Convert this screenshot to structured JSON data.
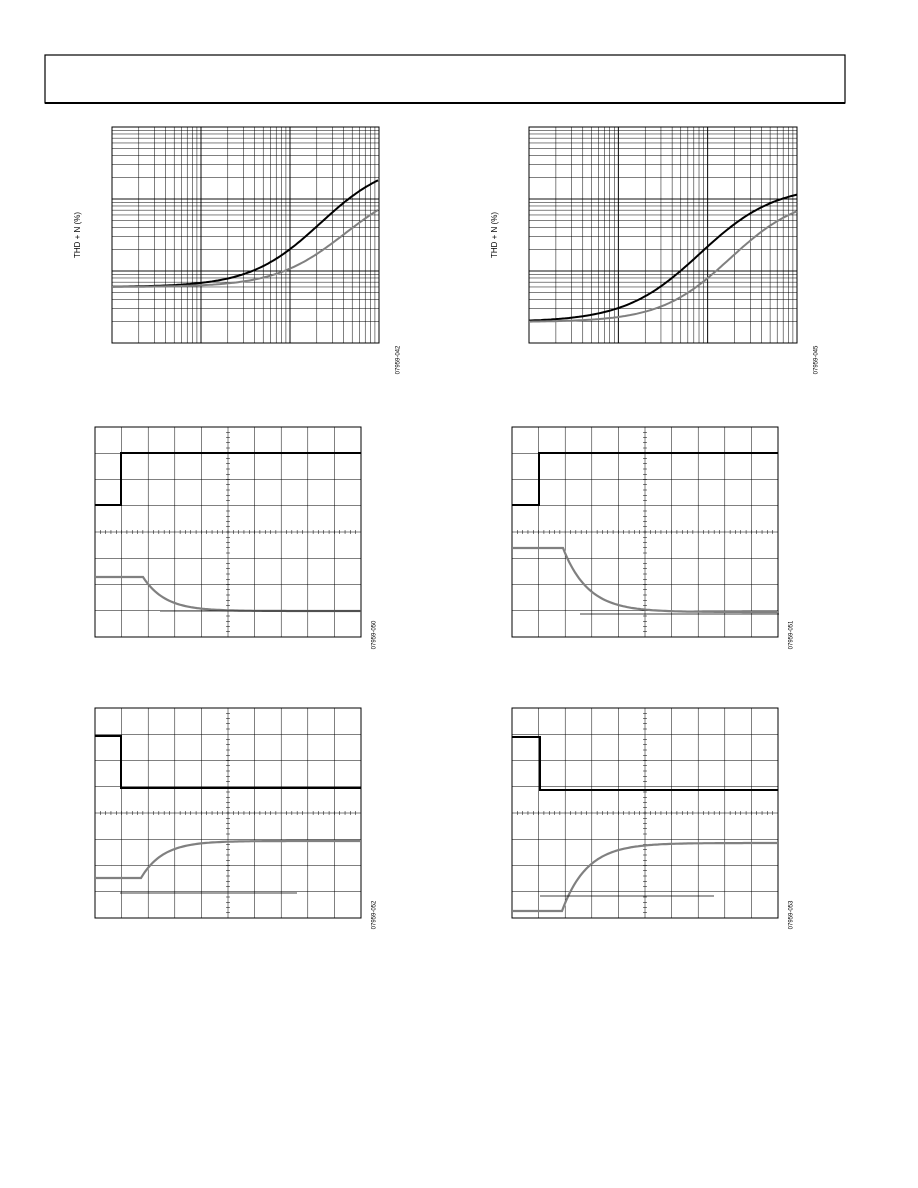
{
  "figures": [
    {
      "y_axis_label": "THD + N (%)",
      "figure_id": "07959-042"
    },
    {
      "y_axis_label": "THD + N (%)",
      "figure_id": "07959-045"
    },
    {
      "figure_id": "07959-050"
    },
    {
      "figure_id": "07959-051"
    },
    {
      "figure_id": "07959-052"
    },
    {
      "figure_id": "07959-053"
    }
  ]
}
